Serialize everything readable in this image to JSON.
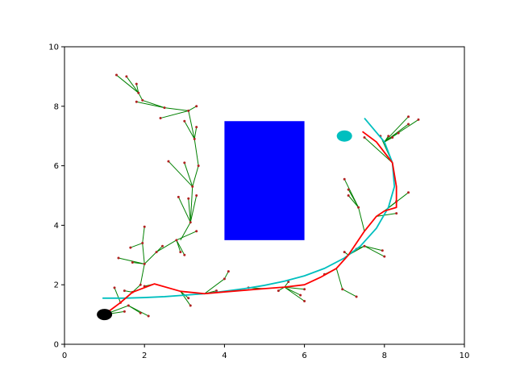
{
  "chart_data": {
    "type": "scatter",
    "title": "",
    "xlabel": "",
    "ylabel": "",
    "xlim": [
      0,
      10
    ],
    "ylim": [
      0,
      10
    ],
    "grid": false,
    "x_ticks": [
      "0",
      "2",
      "4",
      "6",
      "8",
      "10"
    ],
    "y_ticks": [
      "0",
      "2",
      "4",
      "6",
      "8",
      "10"
    ],
    "colors": {
      "tree": "#008000",
      "nodes": "#b22222",
      "path": "#ff0000",
      "reference": "#00bfbf",
      "obstacle": "#0000ff",
      "start": "#000000",
      "goal": "#00bfbf"
    },
    "obstacle": {
      "x0": 4,
      "y0": 3.5,
      "x1": 6,
      "y1": 7.5
    },
    "start": [
      1.0,
      1.0
    ],
    "goal": [
      7.0,
      7.0
    ],
    "reference_path": [
      [
        0.95,
        1.55
      ],
      [
        1.5,
        1.55
      ],
      [
        2.0,
        1.57
      ],
      [
        2.5,
        1.6
      ],
      [
        3.0,
        1.65
      ],
      [
        3.5,
        1.7
      ],
      [
        4.0,
        1.78
      ],
      [
        4.5,
        1.87
      ],
      [
        5.0,
        1.98
      ],
      [
        5.5,
        2.12
      ],
      [
        6.0,
        2.3
      ],
      [
        6.5,
        2.55
      ],
      [
        7.0,
        2.9
      ],
      [
        7.4,
        3.3
      ],
      [
        7.8,
        3.9
      ],
      [
        8.1,
        4.6
      ],
      [
        8.25,
        5.3
      ],
      [
        8.2,
        6.1
      ],
      [
        8.0,
        6.8
      ],
      [
        7.5,
        7.6
      ]
    ],
    "planned_path": [
      [
        1.0,
        1.0
      ],
      [
        1.4,
        1.4
      ],
      [
        1.7,
        1.75
      ],
      [
        2.25,
        2.03
      ],
      [
        2.9,
        1.78
      ],
      [
        3.5,
        1.7
      ],
      [
        4.0,
        1.76
      ],
      [
        5.0,
        1.87
      ],
      [
        5.5,
        1.92
      ],
      [
        6.0,
        2.0
      ],
      [
        6.4,
        2.25
      ],
      [
        6.8,
        2.55
      ],
      [
        7.1,
        3.0
      ],
      [
        7.5,
        3.8
      ],
      [
        7.8,
        4.3
      ],
      [
        8.0,
        4.48
      ],
      [
        8.3,
        4.6
      ],
      [
        8.3,
        5.3
      ],
      [
        8.2,
        6.1
      ],
      [
        7.8,
        6.8
      ],
      [
        7.45,
        7.15
      ]
    ],
    "tree_edges": [
      [
        [
          1.0,
          1.0
        ],
        [
          1.4,
          1.4
        ]
      ],
      [
        [
          1.4,
          1.4
        ],
        [
          1.25,
          1.9
        ]
      ],
      [
        [
          1.4,
          1.4
        ],
        [
          1.7,
          1.75
        ]
      ],
      [
        [
          1.7,
          1.75
        ],
        [
          1.5,
          1.8
        ]
      ],
      [
        [
          1.0,
          1.0
        ],
        [
          1.6,
          1.3
        ]
      ],
      [
        [
          1.6,
          1.3
        ],
        [
          2.1,
          0.95
        ]
      ],
      [
        [
          1.6,
          1.3
        ],
        [
          1.9,
          1.05
        ]
      ],
      [
        [
          1.0,
          1.0
        ],
        [
          1.5,
          1.1
        ]
      ],
      [
        [
          1.7,
          1.75
        ],
        [
          1.9,
          2.0
        ]
      ],
      [
        [
          1.9,
          2.0
        ],
        [
          2.0,
          2.7
        ]
      ],
      [
        [
          2.0,
          2.7
        ],
        [
          1.35,
          2.9
        ]
      ],
      [
        [
          2.0,
          2.7
        ],
        [
          1.7,
          2.75
        ]
      ],
      [
        [
          2.0,
          2.7
        ],
        [
          1.95,
          3.4
        ]
      ],
      [
        [
          1.95,
          3.4
        ],
        [
          2.0,
          3.95
        ]
      ],
      [
        [
          1.95,
          3.4
        ],
        [
          1.65,
          3.25
        ]
      ],
      [
        [
          2.0,
          2.7
        ],
        [
          2.3,
          3.1
        ]
      ],
      [
        [
          2.3,
          3.1
        ],
        [
          2.8,
          3.5
        ]
      ],
      [
        [
          2.8,
          3.5
        ],
        [
          3.0,
          3.0
        ]
      ],
      [
        [
          2.8,
          3.5
        ],
        [
          3.3,
          3.8
        ]
      ],
      [
        [
          2.8,
          3.5
        ],
        [
          2.9,
          3.1
        ]
      ],
      [
        [
          2.3,
          3.1
        ],
        [
          2.45,
          3.3
        ]
      ],
      [
        [
          2.9,
          3.5
        ],
        [
          3.15,
          4.1
        ]
      ],
      [
        [
          3.15,
          4.1
        ],
        [
          2.85,
          4.95
        ]
      ],
      [
        [
          3.15,
          4.1
        ],
        [
          3.1,
          4.9
        ]
      ],
      [
        [
          3.15,
          4.1
        ],
        [
          3.3,
          5.0
        ]
      ],
      [
        [
          3.15,
          4.1
        ],
        [
          3.2,
          5.3
        ]
      ],
      [
        [
          3.2,
          5.3
        ],
        [
          3.0,
          6.1
        ]
      ],
      [
        [
          3.2,
          5.3
        ],
        [
          2.6,
          6.15
        ]
      ],
      [
        [
          3.2,
          5.3
        ],
        [
          3.35,
          6.0
        ]
      ],
      [
        [
          3.35,
          6.0
        ],
        [
          3.25,
          6.9
        ]
      ],
      [
        [
          3.25,
          6.9
        ],
        [
          3.3,
          7.3
        ]
      ],
      [
        [
          3.25,
          6.9
        ],
        [
          3.0,
          7.5
        ]
      ],
      [
        [
          3.25,
          6.9
        ],
        [
          3.1,
          7.85
        ]
      ],
      [
        [
          3.1,
          7.85
        ],
        [
          2.4,
          7.6
        ]
      ],
      [
        [
          3.1,
          7.85
        ],
        [
          3.3,
          8.0
        ]
      ],
      [
        [
          3.1,
          7.85
        ],
        [
          2.5,
          7.95
        ]
      ],
      [
        [
          2.5,
          7.95
        ],
        [
          1.95,
          8.2
        ]
      ],
      [
        [
          2.5,
          7.95
        ],
        [
          1.8,
          8.15
        ]
      ],
      [
        [
          1.95,
          8.2
        ],
        [
          1.85,
          8.45
        ]
      ],
      [
        [
          1.85,
          8.45
        ],
        [
          1.3,
          9.05
        ]
      ],
      [
        [
          1.85,
          8.45
        ],
        [
          1.55,
          9.0
        ]
      ],
      [
        [
          1.85,
          8.45
        ],
        [
          1.8,
          8.75
        ]
      ],
      [
        [
          2.9,
          1.78
        ],
        [
          3.15,
          1.3
        ]
      ],
      [
        [
          2.9,
          1.78
        ],
        [
          3.1,
          1.55
        ]
      ],
      [
        [
          3.5,
          1.7
        ],
        [
          4.0,
          2.2
        ]
      ],
      [
        [
          4.0,
          2.2
        ],
        [
          4.1,
          2.45
        ]
      ],
      [
        [
          3.5,
          1.7
        ],
        [
          3.8,
          1.8
        ]
      ],
      [
        [
          2.25,
          2.03
        ],
        [
          2.0,
          1.95
        ]
      ],
      [
        [
          5.0,
          1.87
        ],
        [
          4.6,
          1.9
        ]
      ],
      [
        [
          5.5,
          1.92
        ],
        [
          5.35,
          1.8
        ]
      ],
      [
        [
          5.5,
          1.92
        ],
        [
          5.6,
          2.1
        ]
      ],
      [
        [
          5.5,
          1.92
        ],
        [
          6.0,
          1.45
        ]
      ],
      [
        [
          5.5,
          1.92
        ],
        [
          5.9,
          1.65
        ]
      ],
      [
        [
          5.5,
          1.92
        ],
        [
          6.0,
          1.85
        ]
      ],
      [
        [
          6.8,
          2.55
        ],
        [
          6.95,
          1.85
        ]
      ],
      [
        [
          6.95,
          1.85
        ],
        [
          7.3,
          1.6
        ]
      ],
      [
        [
          6.8,
          2.55
        ],
        [
          6.5,
          2.35
        ]
      ],
      [
        [
          7.1,
          3.0
        ],
        [
          7.0,
          3.1
        ]
      ],
      [
        [
          7.5,
          3.3
        ],
        [
          8.0,
          2.95
        ]
      ],
      [
        [
          7.5,
          3.3
        ],
        [
          7.95,
          3.15
        ]
      ],
      [
        [
          7.5,
          3.3
        ],
        [
          7.3,
          3.2
        ]
      ],
      [
        [
          7.1,
          3.0
        ],
        [
          7.5,
          3.3
        ]
      ],
      [
        [
          7.5,
          3.8
        ],
        [
          7.35,
          4.6
        ]
      ],
      [
        [
          7.35,
          4.6
        ],
        [
          7.1,
          5.2
        ]
      ],
      [
        [
          7.35,
          4.6
        ],
        [
          7.0,
          5.55
        ]
      ],
      [
        [
          7.35,
          4.6
        ],
        [
          7.1,
          5.0
        ]
      ],
      [
        [
          7.8,
          4.3
        ],
        [
          8.3,
          4.4
        ]
      ],
      [
        [
          8.0,
          4.48
        ],
        [
          8.6,
          5.1
        ]
      ],
      [
        [
          8.0,
          4.48
        ],
        [
          8.3,
          4.8
        ]
      ],
      [
        [
          8.2,
          6.1
        ],
        [
          7.5,
          6.95
        ]
      ],
      [
        [
          8.2,
          6.1
        ],
        [
          7.9,
          7.0
        ]
      ],
      [
        [
          8.0,
          6.8
        ],
        [
          8.35,
          7.1
        ]
      ],
      [
        [
          8.0,
          6.8
        ],
        [
          8.1,
          7.0
        ]
      ],
      [
        [
          8.0,
          6.8
        ],
        [
          8.85,
          7.55
        ]
      ],
      [
        [
          8.0,
          6.8
        ],
        [
          8.6,
          7.4
        ]
      ],
      [
        [
          8.0,
          6.8
        ],
        [
          8.6,
          7.65
        ]
      ],
      [
        [
          8.0,
          6.8
        ],
        [
          8.2,
          6.95
        ]
      ]
    ]
  }
}
